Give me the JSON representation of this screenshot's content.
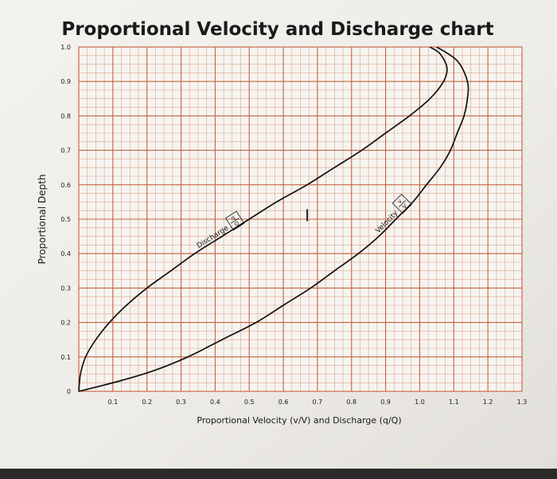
{
  "chart_data": {
    "type": "line",
    "title": "Proportional Velocity and Discharge chart",
    "xlabel": "Proportional Velocity (v/V) and Discharge (q/Q)",
    "ylabel": "Proportional Depth",
    "xlim": [
      0,
      1.3
    ],
    "ylim": [
      0,
      1.0
    ],
    "grid": true,
    "x_ticks": [
      "0.1",
      "0.2",
      "0.3",
      "0.4",
      "0.5",
      "0.6",
      "0.7",
      "0.8",
      "0.9",
      "1.0",
      "1.1",
      "1.2",
      "1.3"
    ],
    "y_ticks": [
      "0",
      "0.1",
      "0.2",
      "0.3",
      "0.4",
      "0.5",
      "0.6",
      "0.7",
      "0.8",
      "0.9",
      "1.0"
    ],
    "series": [
      {
        "name": "Discharge (q/Q)",
        "label_text": "Discharge",
        "label_frac": "q/Q",
        "points": [
          [
            0.0,
            0.0
          ],
          [
            0.005,
            0.05
          ],
          [
            0.02,
            0.1
          ],
          [
            0.05,
            0.15
          ],
          [
            0.09,
            0.2
          ],
          [
            0.14,
            0.25
          ],
          [
            0.2,
            0.3
          ],
          [
            0.27,
            0.35
          ],
          [
            0.34,
            0.4
          ],
          [
            0.42,
            0.45
          ],
          [
            0.5,
            0.5
          ],
          [
            0.58,
            0.55
          ],
          [
            0.67,
            0.6
          ],
          [
            0.75,
            0.65
          ],
          [
            0.83,
            0.7
          ],
          [
            0.9,
            0.75
          ],
          [
            0.97,
            0.8
          ],
          [
            1.03,
            0.85
          ],
          [
            1.07,
            0.9
          ],
          [
            1.08,
            0.94
          ],
          [
            1.06,
            0.98
          ],
          [
            1.03,
            1.0
          ]
        ]
      },
      {
        "name": "Velocity (v/V)",
        "label_text": "Velocity",
        "label_frac": "v/V",
        "points": [
          [
            0.0,
            0.0
          ],
          [
            0.12,
            0.03
          ],
          [
            0.22,
            0.06
          ],
          [
            0.32,
            0.1
          ],
          [
            0.42,
            0.15
          ],
          [
            0.52,
            0.2
          ],
          [
            0.6,
            0.25
          ],
          [
            0.68,
            0.3
          ],
          [
            0.75,
            0.35
          ],
          [
            0.82,
            0.4
          ],
          [
            0.88,
            0.45
          ],
          [
            0.93,
            0.5
          ],
          [
            0.98,
            0.55
          ],
          [
            1.02,
            0.6
          ],
          [
            1.06,
            0.65
          ],
          [
            1.09,
            0.7
          ],
          [
            1.11,
            0.75
          ],
          [
            1.13,
            0.8
          ],
          [
            1.14,
            0.85
          ],
          [
            1.14,
            0.9
          ],
          [
            1.11,
            0.96
          ],
          [
            1.05,
            1.0
          ]
        ]
      }
    ],
    "annotations": [
      {
        "text": "I",
        "x": 0.67,
        "y": 0.51
      }
    ]
  }
}
